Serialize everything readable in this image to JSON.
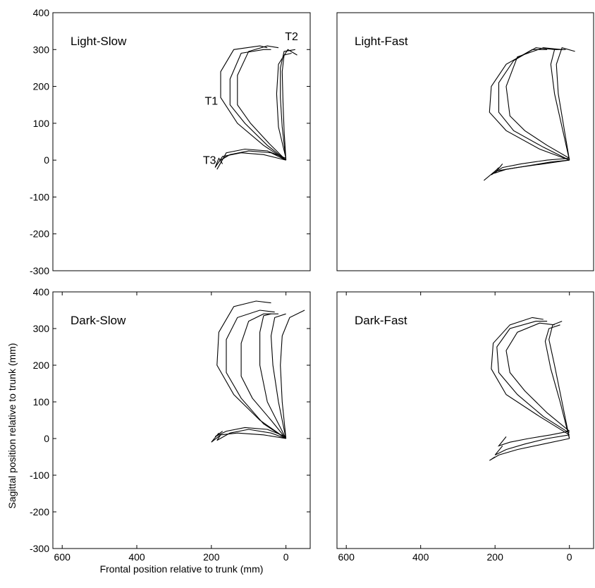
{
  "chart_data": [
    {
      "type": "line",
      "title": "Light-Slow",
      "xlim": [
        625,
        -65
      ],
      "ylim": [
        -300,
        400
      ],
      "yticks": [
        -300,
        -200,
        -100,
        0,
        100,
        200,
        300,
        400
      ],
      "color": "#000000",
      "annotations": [
        {
          "text": "T1",
          "x": 200,
          "y": 150
        },
        {
          "text": "T2",
          "x": -15,
          "y": 325
        },
        {
          "text": "T3",
          "x": 205,
          "y": -10
        }
      ],
      "series": [
        {
          "x": [
            0,
            5,
            8,
            10,
            5,
            -15
          ],
          "y": [
            0,
            80,
            160,
            240,
            285,
            290
          ]
        },
        {
          "x": [
            0,
            10,
            15,
            15,
            5,
            -25
          ],
          "y": [
            0,
            90,
            170,
            250,
            295,
            300
          ]
        },
        {
          "x": [
            0,
            20,
            25,
            20,
            -5,
            -30
          ],
          "y": [
            5,
            90,
            180,
            260,
            300,
            285
          ]
        },
        {
          "x": [
            0,
            60,
            130,
            175,
            175,
            140,
            70,
            50
          ],
          "y": [
            0,
            40,
            100,
            170,
            240,
            300,
            310,
            305
          ]
        },
        {
          "x": [
            0,
            50,
            110,
            150,
            150,
            120,
            60,
            40
          ],
          "y": [
            0,
            40,
            100,
            150,
            220,
            290,
            300,
            300
          ]
        },
        {
          "x": [
            0,
            45,
            95,
            130,
            130,
            100,
            50,
            20
          ],
          "y": [
            0,
            45,
            100,
            150,
            230,
            295,
            310,
            305
          ]
        },
        {
          "x": [
            0,
            60,
            120,
            170,
            190,
            180,
            170
          ],
          "y": [
            0,
            15,
            20,
            10,
            -20,
            5,
            -10
          ]
        },
        {
          "x": [
            0,
            50,
            110,
            160,
            185,
            165
          ],
          "y": [
            5,
            25,
            30,
            20,
            -25,
            10
          ]
        },
        {
          "x": [
            0,
            40,
            100,
            150,
            175,
            160
          ],
          "y": [
            0,
            20,
            25,
            15,
            0,
            10
          ]
        }
      ]
    },
    {
      "type": "line",
      "title": "Light-Fast",
      "xlim": [
        625,
        -65
      ],
      "ylim": [
        -300,
        400
      ],
      "color": "#000000",
      "series": [
        {
          "x": [
            0,
            20,
            40,
            50,
            40,
            10
          ],
          "y": [
            0,
            90,
            180,
            260,
            300,
            300
          ]
        },
        {
          "x": [
            0,
            15,
            30,
            35,
            20,
            -15
          ],
          "y": [
            0,
            90,
            180,
            260,
            305,
            295
          ]
        },
        {
          "x": [
            0,
            80,
            170,
            215,
            210,
            170,
            100,
            60
          ],
          "y": [
            0,
            30,
            80,
            130,
            200,
            260,
            300,
            300
          ]
        },
        {
          "x": [
            0,
            70,
            150,
            190,
            190,
            150,
            90,
            40
          ],
          "y": [
            0,
            35,
            80,
            130,
            210,
            270,
            305,
            300
          ]
        },
        {
          "x": [
            0,
            60,
            120,
            160,
            170,
            140,
            70,
            20
          ],
          "y": [
            5,
            40,
            80,
            120,
            200,
            280,
            305,
            300
          ]
        },
        {
          "x": [
            0,
            70,
            140,
            200,
            230,
            200,
            170
          ],
          "y": [
            0,
            -10,
            -20,
            -30,
            -55,
            -30,
            -25
          ]
        },
        {
          "x": [
            0,
            60,
            130,
            180,
            210,
            190
          ],
          "y": [
            5,
            0,
            -10,
            -20,
            -40,
            -20
          ]
        },
        {
          "x": [
            0,
            50,
            110,
            170,
            200,
            180
          ],
          "y": [
            0,
            -5,
            -15,
            -25,
            -35,
            -10
          ]
        }
      ]
    },
    {
      "type": "line",
      "title": "Dark-Slow",
      "xlim": [
        625,
        -65
      ],
      "ylim": [
        -300,
        400
      ],
      "yticks": [
        -300,
        -200,
        -100,
        0,
        100,
        200,
        300,
        400
      ],
      "xticks": [
        600,
        400,
        200,
        0
      ],
      "xlabel": "Frontal position relative to trunk (mm)",
      "ylabel": "Sagittal position relative to trunk (mm)",
      "color": "#000000",
      "series": [
        {
          "x": [
            0,
            10,
            15,
            10,
            -10,
            -50
          ],
          "y": [
            0,
            100,
            200,
            280,
            330,
            350
          ]
        },
        {
          "x": [
            0,
            20,
            35,
            40,
            30,
            0
          ],
          "y": [
            0,
            100,
            200,
            280,
            330,
            340
          ]
        },
        {
          "x": [
            0,
            50,
            70,
            70,
            60,
            40
          ],
          "y": [
            0,
            100,
            200,
            290,
            335,
            340
          ]
        },
        {
          "x": [
            0,
            70,
            140,
            185,
            180,
            140,
            80,
            40
          ],
          "y": [
            0,
            50,
            120,
            200,
            290,
            360,
            375,
            370
          ]
        },
        {
          "x": [
            0,
            60,
            120,
            160,
            160,
            130,
            70,
            30
          ],
          "y": [
            0,
            40,
            110,
            180,
            270,
            330,
            350,
            345
          ]
        },
        {
          "x": [
            0,
            40,
            90,
            120,
            120,
            100,
            60,
            20
          ],
          "y": [
            0,
            50,
            110,
            170,
            260,
            320,
            340,
            340
          ]
        },
        {
          "x": [
            0,
            60,
            130,
            175,
            200,
            180
          ],
          "y": [
            0,
            10,
            15,
            10,
            -10,
            15
          ]
        },
        {
          "x": [
            0,
            50,
            110,
            160,
            190,
            170
          ],
          "y": [
            5,
            25,
            30,
            20,
            5,
            20
          ]
        },
        {
          "x": [
            0,
            40,
            100,
            150,
            185,
            175
          ],
          "y": [
            0,
            15,
            25,
            15,
            -5,
            10
          ]
        }
      ]
    },
    {
      "type": "line",
      "title": "Dark-Fast",
      "xlim": [
        625,
        -65
      ],
      "ylim": [
        -300,
        400
      ],
      "xticks": [
        600,
        400,
        200,
        0
      ],
      "color": "#000000",
      "series": [
        {
          "x": [
            0,
            20,
            40,
            55,
            45,
            20
          ],
          "y": [
            0,
            100,
            200,
            270,
            310,
            320
          ]
        },
        {
          "x": [
            0,
            25,
            50,
            65,
            55,
            25
          ],
          "y": [
            0,
            100,
            190,
            265,
            300,
            310
          ]
        },
        {
          "x": [
            0,
            80,
            170,
            210,
            205,
            160,
            100,
            70
          ],
          "y": [
            10,
            60,
            120,
            190,
            260,
            310,
            330,
            325
          ]
        },
        {
          "x": [
            0,
            70,
            140,
            190,
            195,
            160,
            90,
            60
          ],
          "y": [
            15,
            60,
            120,
            180,
            250,
            300,
            320,
            320
          ]
        },
        {
          "x": [
            0,
            60,
            120,
            160,
            170,
            140,
            80,
            40
          ],
          "y": [
            20,
            70,
            130,
            180,
            240,
            290,
            315,
            310
          ]
        },
        {
          "x": [
            0,
            70,
            140,
            190,
            215,
            200
          ],
          "y": [
            0,
            -15,
            -30,
            -45,
            -60,
            -50
          ]
        },
        {
          "x": [
            0,
            60,
            120,
            170,
            200,
            180
          ],
          "y": [
            10,
            0,
            -15,
            -30,
            -45,
            -20
          ]
        },
        {
          "x": [
            0,
            50,
            110,
            160,
            190,
            170
          ],
          "y": [
            20,
            10,
            0,
            -10,
            -20,
            5
          ]
        }
      ]
    }
  ]
}
